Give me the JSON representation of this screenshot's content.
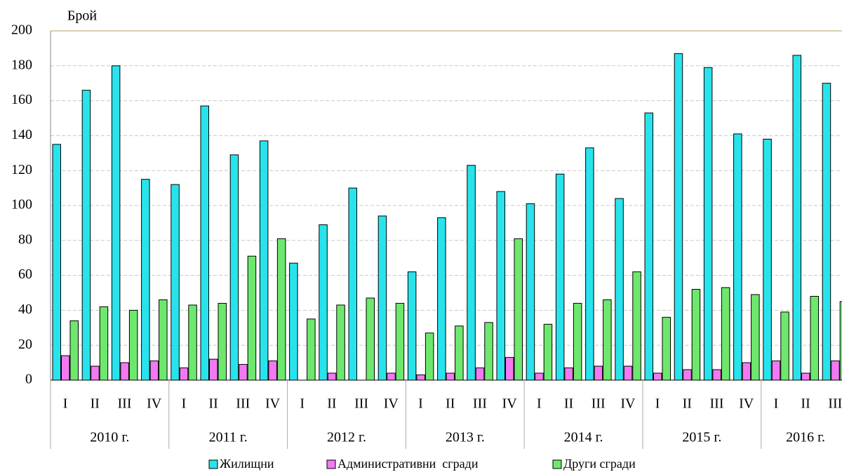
{
  "chart_data": {
    "type": "bar",
    "y_label": "Брой",
    "categories": [
      "I",
      "II",
      "III",
      "IV",
      "I",
      "II",
      "III",
      "IV",
      "I",
      "II",
      "III",
      "IV",
      "I",
      "II",
      "III",
      "IV",
      "I",
      "II",
      "III",
      "IV",
      "I",
      "II",
      "III",
      "IV",
      "I",
      "II",
      "III"
    ],
    "groups": [
      "2010 г.",
      "2011 г.",
      "2012 г.",
      "2013 г.",
      "2014 г.",
      "2015 г.",
      "2016 г."
    ],
    "series": [
      {
        "name": "Жилищни",
        "color": "#29e3ec",
        "values": [
          135,
          166,
          180,
          115,
          112,
          157,
          129,
          137,
          67,
          89,
          110,
          94,
          62,
          93,
          123,
          108,
          101,
          118,
          133,
          104,
          153,
          187,
          179,
          141,
          138,
          186,
          170
        ]
      },
      {
        "name": "Административни  сгради",
        "color": "#f279f2",
        "values": [
          14,
          8,
          10,
          11,
          7,
          12,
          9,
          11,
          0,
          4,
          0,
          4,
          3,
          4,
          7,
          13,
          4,
          7,
          8,
          8,
          4,
          6,
          6,
          10,
          11,
          4,
          11
        ]
      },
      {
        "name": "Други сгради",
        "color": "#6de86d",
        "values": [
          34,
          42,
          40,
          46,
          43,
          44,
          71,
          81,
          35,
          43,
          47,
          44,
          27,
          31,
          33,
          81,
          32,
          44,
          46,
          62,
          36,
          52,
          53,
          49,
          39,
          48,
          45
        ]
      }
    ],
    "ylim": [
      0,
      200
    ],
    "yticks": [
      0,
      20,
      40,
      60,
      80,
      100,
      120,
      140,
      160,
      180,
      200
    ],
    "grid": true
  }
}
